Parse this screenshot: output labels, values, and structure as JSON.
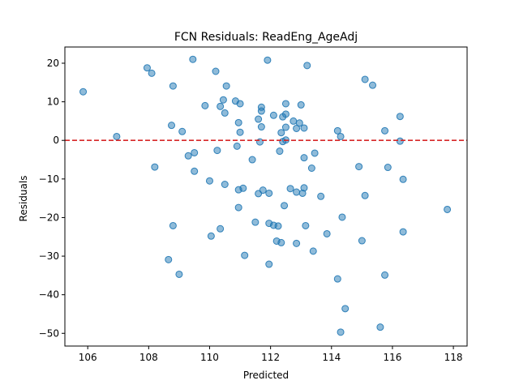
{
  "chart_data": {
    "type": "scatter",
    "title": "FCN Residuals: ReadEng_AgeAdj",
    "xlabel": "Predicted",
    "ylabel": "Residuals",
    "xlim": [
      105.25,
      118.45
    ],
    "ylim": [
      -53.3,
      24.2
    ],
    "xticks": [
      106,
      108,
      110,
      112,
      114,
      116,
      118
    ],
    "yticks": [
      20,
      10,
      0,
      -10,
      -20,
      -30,
      -40,
      -50
    ],
    "grid": false,
    "reference_line": {
      "y": 0,
      "style": "dashed",
      "color": "#d62728"
    },
    "marker_color": "#1f77b4",
    "marker_alpha": 0.5,
    "points": [
      [
        105.85,
        12.6
      ],
      [
        106.95,
        1.0
      ],
      [
        107.95,
        18.8
      ],
      [
        108.1,
        17.4
      ],
      [
        108.2,
        -6.9
      ],
      [
        108.65,
        -30.9
      ],
      [
        108.75,
        3.9
      ],
      [
        108.8,
        14.1
      ],
      [
        108.8,
        -22.1
      ],
      [
        109.0,
        -34.7
      ],
      [
        109.1,
        2.3
      ],
      [
        109.3,
        -4.0
      ],
      [
        109.45,
        21.0
      ],
      [
        109.5,
        -3.2
      ],
      [
        109.5,
        -8.0
      ],
      [
        109.85,
        9.0
      ],
      [
        110.0,
        -10.5
      ],
      [
        110.05,
        -24.8
      ],
      [
        110.2,
        17.9
      ],
      [
        110.25,
        -2.6
      ],
      [
        110.35,
        -22.9
      ],
      [
        110.35,
        8.8
      ],
      [
        110.45,
        10.5
      ],
      [
        110.5,
        -11.4
      ],
      [
        110.5,
        7.1
      ],
      [
        110.55,
        14.1
      ],
      [
        110.85,
        10.2
      ],
      [
        110.9,
        -1.5
      ],
      [
        110.95,
        -12.8
      ],
      [
        110.95,
        -17.4
      ],
      [
        110.95,
        4.6
      ],
      [
        111.0,
        9.5
      ],
      [
        111.0,
        2.1
      ],
      [
        111.1,
        -12.4
      ],
      [
        111.15,
        -29.8
      ],
      [
        111.4,
        -5.0
      ],
      [
        111.5,
        -21.2
      ],
      [
        111.6,
        -13.8
      ],
      [
        111.6,
        5.5
      ],
      [
        111.65,
        -0.4
      ],
      [
        111.7,
        7.6
      ],
      [
        111.7,
        8.6
      ],
      [
        111.75,
        -12.9
      ],
      [
        111.7,
        3.5
      ],
      [
        111.9,
        20.8
      ],
      [
        111.95,
        -21.5
      ],
      [
        111.95,
        -32.1
      ],
      [
        111.95,
        -13.7
      ],
      [
        112.1,
        6.5
      ],
      [
        112.1,
        -22.0
      ],
      [
        112.25,
        -22.2
      ],
      [
        112.2,
        -26.1
      ],
      [
        112.3,
        -2.8
      ],
      [
        112.35,
        2.0
      ],
      [
        112.35,
        -26.5
      ],
      [
        112.4,
        6.1
      ],
      [
        112.4,
        -0.3
      ],
      [
        112.45,
        -16.9
      ],
      [
        112.5,
        6.8
      ],
      [
        112.5,
        9.5
      ],
      [
        112.5,
        3.4
      ],
      [
        112.5,
        0.1
      ],
      [
        112.65,
        -12.5
      ],
      [
        112.75,
        5.0
      ],
      [
        112.85,
        3.1
      ],
      [
        112.85,
        -13.4
      ],
      [
        112.85,
        -26.7
      ],
      [
        112.95,
        4.5
      ],
      [
        113.0,
        9.2
      ],
      [
        113.05,
        -13.7
      ],
      [
        113.1,
        3.2
      ],
      [
        113.1,
        -12.3
      ],
      [
        113.1,
        -4.5
      ],
      [
        113.15,
        -22.1
      ],
      [
        113.2,
        19.4
      ],
      [
        113.35,
        -7.2
      ],
      [
        113.4,
        -28.7
      ],
      [
        113.45,
        -3.3
      ],
      [
        113.65,
        -14.5
      ],
      [
        113.85,
        -24.2
      ],
      [
        114.2,
        2.5
      ],
      [
        114.2,
        -35.9
      ],
      [
        114.3,
        1.0
      ],
      [
        114.3,
        -49.7
      ],
      [
        114.35,
        -19.9
      ],
      [
        114.45,
        -43.6
      ],
      [
        114.9,
        -6.8
      ],
      [
        115.0,
        -26.0
      ],
      [
        115.1,
        15.8
      ],
      [
        115.1,
        -14.3
      ],
      [
        115.35,
        14.3
      ],
      [
        115.6,
        -48.4
      ],
      [
        115.75,
        2.5
      ],
      [
        115.75,
        -34.9
      ],
      [
        115.85,
        -7.0
      ],
      [
        116.25,
        6.2
      ],
      [
        116.25,
        -0.2
      ],
      [
        116.35,
        -23.7
      ],
      [
        116.35,
        -10.1
      ],
      [
        117.8,
        -17.9
      ]
    ]
  }
}
